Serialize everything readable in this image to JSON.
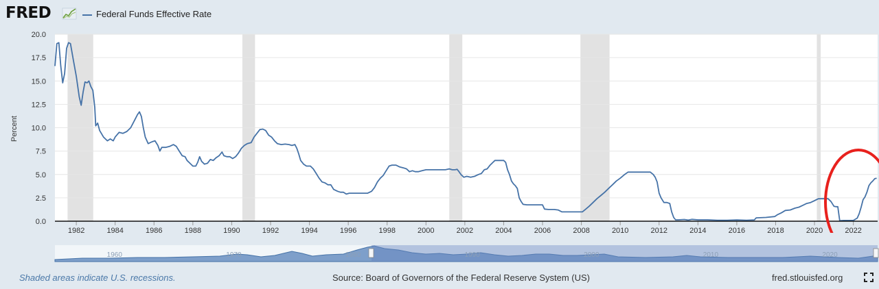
{
  "header": {
    "logo_text": "FRED",
    "series_label": "Federal Funds Effective Rate",
    "series_color": "#4572a7"
  },
  "footer": {
    "note": "Shaded areas indicate U.S. recessions.",
    "source": "Source: Board of Governors of the Federal Reserve System (US)",
    "url": "fred.stlouisfed.org"
  },
  "icons": {
    "logo_graph": "line-chart-icon",
    "fullscreen": "expand-icon"
  },
  "navigator": {
    "tick_labels": [
      "1960",
      "1970",
      "1980",
      "1990",
      "2000",
      "2010",
      "2020"
    ],
    "selected_range": [
      1981,
      2023
    ]
  },
  "annotation": {
    "shape": "circle",
    "color": "#e8211d",
    "around": "2021-2023 rate increase"
  },
  "chart_data": {
    "type": "line",
    "title": "",
    "xlabel": "",
    "ylabel": "Percent",
    "xlim": [
      1980.9,
      2023.25
    ],
    "ylim": [
      0,
      20
    ],
    "yticks": [
      "0.0",
      "2.5",
      "5.0",
      "7.5",
      "10.0",
      "12.5",
      "15.0",
      "17.5",
      "20.0"
    ],
    "xticks": [
      "1982",
      "1984",
      "1986",
      "1988",
      "1990",
      "1992",
      "1994",
      "1996",
      "1998",
      "2000",
      "2002",
      "2004",
      "2006",
      "2008",
      "2010",
      "2012",
      "2014",
      "2016",
      "2018",
      "2020",
      "2022"
    ],
    "grid": true,
    "legend_position": "top-left",
    "recessions": [
      [
        1981.55,
        1982.87
      ],
      [
        1990.55,
        1991.2
      ],
      [
        2001.2,
        2001.87
      ],
      [
        2007.95,
        2009.45
      ],
      [
        2020.12,
        2020.32
      ]
    ],
    "series": [
      {
        "name": "Federal Funds Effective Rate",
        "color": "#4572a7",
        "points": [
          [
            1980.9,
            16.6
          ],
          [
            1981.0,
            19.0
          ],
          [
            1981.1,
            19.1
          ],
          [
            1981.2,
            16.6
          ],
          [
            1981.3,
            14.8
          ],
          [
            1981.4,
            15.8
          ],
          [
            1981.5,
            18.5
          ],
          [
            1981.6,
            19.1
          ],
          [
            1981.7,
            19.0
          ],
          [
            1981.85,
            17.2
          ],
          [
            1982.0,
            15.5
          ],
          [
            1982.15,
            13.3
          ],
          [
            1982.25,
            12.4
          ],
          [
            1982.35,
            13.8
          ],
          [
            1982.45,
            14.9
          ],
          [
            1982.55,
            14.8
          ],
          [
            1982.65,
            15.0
          ],
          [
            1982.75,
            14.4
          ],
          [
            1982.85,
            14.0
          ],
          [
            1982.95,
            12.2
          ],
          [
            1983.0,
            10.2
          ],
          [
            1983.1,
            10.5
          ],
          [
            1983.2,
            9.7
          ],
          [
            1983.4,
            9.0
          ],
          [
            1983.6,
            8.6
          ],
          [
            1983.75,
            8.8
          ],
          [
            1983.9,
            8.6
          ],
          [
            1984.0,
            9.0
          ],
          [
            1984.2,
            9.5
          ],
          [
            1984.4,
            9.4
          ],
          [
            1984.6,
            9.6
          ],
          [
            1984.8,
            10.0
          ],
          [
            1985.0,
            10.8
          ],
          [
            1985.15,
            11.4
          ],
          [
            1985.25,
            11.7
          ],
          [
            1985.35,
            11.2
          ],
          [
            1985.45,
            10.0
          ],
          [
            1985.55,
            9.0
          ],
          [
            1985.7,
            8.3
          ],
          [
            1985.9,
            8.5
          ],
          [
            1986.05,
            8.6
          ],
          [
            1986.2,
            8.1
          ],
          [
            1986.3,
            7.5
          ],
          [
            1986.4,
            7.9
          ],
          [
            1986.6,
            7.9
          ],
          [
            1986.8,
            8.0
          ],
          [
            1987.0,
            8.2
          ],
          [
            1987.15,
            8.0
          ],
          [
            1987.3,
            7.5
          ],
          [
            1987.45,
            7.0
          ],
          [
            1987.6,
            6.9
          ],
          [
            1987.7,
            6.5
          ],
          [
            1987.85,
            6.2
          ],
          [
            1988.0,
            5.9
          ],
          [
            1988.15,
            5.9
          ],
          [
            1988.25,
            6.3
          ],
          [
            1988.35,
            6.9
          ],
          [
            1988.45,
            6.4
          ],
          [
            1988.6,
            6.1
          ],
          [
            1988.75,
            6.2
          ],
          [
            1988.9,
            6.6
          ],
          [
            1989.05,
            6.5
          ],
          [
            1989.2,
            6.8
          ],
          [
            1989.35,
            7.0
          ],
          [
            1989.5,
            7.4
          ],
          [
            1989.6,
            7.0
          ],
          [
            1989.75,
            6.9
          ],
          [
            1989.9,
            6.9
          ],
          [
            1990.05,
            6.7
          ],
          [
            1990.2,
            6.9
          ],
          [
            1990.35,
            7.3
          ],
          [
            1990.5,
            7.8
          ],
          [
            1990.65,
            8.1
          ],
          [
            1990.8,
            8.3
          ],
          [
            1991.0,
            8.4
          ],
          [
            1991.15,
            9.0
          ],
          [
            1991.3,
            9.4
          ],
          [
            1991.45,
            9.8
          ],
          [
            1991.6,
            9.85
          ],
          [
            1991.75,
            9.7
          ],
          [
            1991.9,
            9.2
          ],
          [
            1992.05,
            9.0
          ],
          [
            1992.2,
            8.6
          ],
          [
            1992.35,
            8.3
          ],
          [
            1992.55,
            8.2
          ],
          [
            1992.75,
            8.25
          ],
          [
            1992.95,
            8.2
          ],
          [
            1993.1,
            8.1
          ],
          [
            1993.25,
            8.2
          ],
          [
            1993.35,
            7.8
          ],
          [
            1993.45,
            7.2
          ],
          [
            1993.55,
            6.5
          ],
          [
            1993.7,
            6.1
          ],
          [
            1993.85,
            5.9
          ],
          [
            1994.05,
            5.9
          ],
          [
            1994.2,
            5.6
          ],
          [
            1994.35,
            5.1
          ],
          [
            1994.5,
            4.6
          ],
          [
            1994.65,
            4.2
          ],
          [
            1994.8,
            4.1
          ],
          [
            1994.95,
            3.9
          ],
          [
            1995.1,
            3.9
          ],
          [
            1995.25,
            3.4
          ],
          [
            1995.45,
            3.2
          ],
          [
            1995.6,
            3.1
          ],
          [
            1995.75,
            3.1
          ],
          [
            1995.9,
            2.9
          ],
          [
            1996.05,
            3.0
          ],
          [
            1996.25,
            3.0
          ],
          [
            1996.5,
            3.0
          ],
          [
            1996.75,
            3.0
          ],
          [
            1997.0,
            3.0
          ],
          [
            1997.2,
            3.2
          ],
          [
            1997.35,
            3.6
          ],
          [
            1997.5,
            4.2
          ],
          [
            1997.65,
            4.6
          ],
          [
            1997.8,
            4.9
          ],
          [
            1997.95,
            5.4
          ],
          [
            1998.1,
            5.9
          ],
          [
            1998.25,
            6.0
          ],
          [
            1998.45,
            6.0
          ],
          [
            1998.65,
            5.8
          ],
          [
            1998.85,
            5.7
          ],
          [
            1999.0,
            5.6
          ],
          [
            1999.15,
            5.3
          ],
          [
            1999.3,
            5.4
          ],
          [
            1999.45,
            5.3
          ],
          [
            1999.6,
            5.3
          ],
          [
            1999.8,
            5.4
          ],
          [
            2000.0,
            5.5
          ],
          [
            2000.2,
            5.5
          ],
          [
            2000.5,
            5.5
          ],
          [
            2000.8,
            5.5
          ],
          [
            2001.0,
            5.5
          ],
          [
            2001.2,
            5.6
          ],
          [
            2001.35,
            5.5
          ],
          [
            2001.5,
            5.5
          ],
          [
            2001.6,
            5.55
          ],
          [
            2001.7,
            5.3
          ],
          [
            2001.8,
            5.0
          ],
          [
            2001.95,
            4.7
          ],
          [
            2002.1,
            4.8
          ],
          [
            2002.3,
            4.7
          ],
          [
            2002.5,
            4.8
          ],
          [
            2002.7,
            5.0
          ],
          [
            2002.85,
            5.1
          ],
          [
            2003.0,
            5.5
          ],
          [
            2003.15,
            5.6
          ],
          [
            2003.3,
            6.0
          ],
          [
            2003.45,
            6.3
          ],
          [
            2003.55,
            6.5
          ],
          [
            2003.7,
            6.5
          ],
          [
            2003.85,
            6.5
          ],
          [
            2004.0,
            6.5
          ],
          [
            2004.1,
            6.3
          ],
          [
            2004.2,
            5.5
          ],
          [
            2004.3,
            5.0
          ],
          [
            2004.4,
            4.3
          ],
          [
            2004.5,
            4.0
          ],
          [
            2004.6,
            3.8
          ],
          [
            2004.7,
            3.5
          ],
          [
            2004.8,
            2.5
          ],
          [
            2004.9,
            2.1
          ],
          [
            2005.0,
            1.8
          ],
          [
            2005.2,
            1.75
          ],
          [
            2005.5,
            1.75
          ],
          [
            2005.75,
            1.75
          ],
          [
            2006.0,
            1.75
          ],
          [
            2006.1,
            1.3
          ],
          [
            2006.3,
            1.25
          ],
          [
            2006.6,
            1.25
          ],
          [
            2006.8,
            1.2
          ],
          [
            2007.0,
            1.0
          ],
          [
            2007.3,
            1.0
          ],
          [
            2007.6,
            1.0
          ],
          [
            2007.9,
            1.0
          ],
          [
            2008.05,
            1.0
          ],
          [
            2008.2,
            1.25
          ],
          [
            2008.4,
            1.6
          ],
          [
            2008.6,
            2.0
          ],
          [
            2008.8,
            2.4
          ],
          [
            2009.0,
            2.75
          ],
          [
            2009.2,
            3.1
          ],
          [
            2009.4,
            3.5
          ],
          [
            2009.6,
            3.9
          ],
          [
            2009.8,
            4.3
          ],
          [
            2010.0,
            4.6
          ],
          [
            2010.2,
            4.95
          ],
          [
            2010.4,
            5.25
          ],
          [
            2010.7,
            5.25
          ],
          [
            2011.0,
            5.25
          ],
          [
            2011.3,
            5.25
          ],
          [
            2011.55,
            5.25
          ],
          [
            2011.7,
            5.0
          ],
          [
            2011.8,
            4.7
          ],
          [
            2011.9,
            4.2
          ],
          [
            2012.0,
            3.0
          ],
          [
            2012.1,
            2.5
          ],
          [
            2012.25,
            2.0
          ],
          [
            2012.4,
            2.0
          ],
          [
            2012.55,
            1.9
          ],
          [
            2012.65,
            1.0
          ],
          [
            2012.75,
            0.4
          ],
          [
            2012.85,
            0.15
          ],
          [
            2013.0,
            0.15
          ],
          [
            2013.3,
            0.18
          ],
          [
            2013.5,
            0.12
          ],
          [
            2013.7,
            0.2
          ],
          [
            2014.0,
            0.15
          ],
          [
            2014.5,
            0.15
          ],
          [
            2015.0,
            0.1
          ],
          [
            2015.5,
            0.1
          ],
          [
            2016.0,
            0.13
          ],
          [
            2016.5,
            0.1
          ],
          [
            2016.9,
            0.13
          ],
          [
            2017.0,
            0.36
          ],
          [
            2017.5,
            0.4
          ],
          [
            2017.95,
            0.5
          ],
          [
            2018.1,
            0.7
          ],
          [
            2018.3,
            0.9
          ],
          [
            2018.5,
            1.15
          ],
          [
            2018.75,
            1.2
          ],
          [
            2019.0,
            1.4
          ],
          [
            2019.2,
            1.5
          ],
          [
            2019.4,
            1.7
          ],
          [
            2019.6,
            1.9
          ],
          [
            2019.8,
            2.0
          ],
          [
            2020.0,
            2.2
          ],
          [
            2020.2,
            2.4
          ],
          [
            2020.5,
            2.4
          ],
          [
            2020.7,
            2.4
          ],
          [
            2020.85,
            2.1
          ],
          [
            2021.0,
            1.6
          ],
          [
            2021.1,
            1.55
          ],
          [
            2021.2,
            1.55
          ],
          [
            2021.3,
            0.05
          ],
          [
            2021.5,
            0.08
          ],
          [
            2021.8,
            0.08
          ],
          [
            2022.0,
            0.08
          ],
          [
            2022.2,
            0.33
          ],
          [
            2022.3,
            0.8
          ],
          [
            2022.4,
            1.5
          ],
          [
            2022.5,
            2.3
          ],
          [
            2022.6,
            2.6
          ],
          [
            2022.7,
            3.1
          ],
          [
            2022.8,
            3.8
          ],
          [
            2022.9,
            4.1
          ],
          [
            2023.0,
            4.3
          ],
          [
            2023.1,
            4.55
          ],
          [
            2023.2,
            4.6
          ]
        ]
      }
    ]
  }
}
